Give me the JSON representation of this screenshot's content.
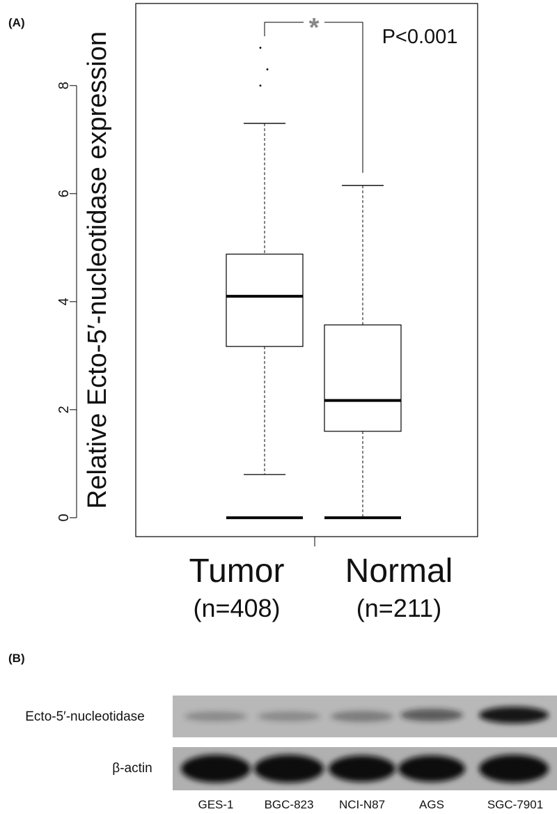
{
  "chart_data": {
    "type": "box",
    "panel_label": "(A)",
    "y_label": "Relative Ecto-5′-nucleotidase expression",
    "categories": [
      "Tumor",
      "Normal"
    ],
    "n_labels": [
      "(n=408)",
      "(n=211)"
    ],
    "boxes": [
      {
        "low": 0.8,
        "q1": 3.17,
        "median": 4.1,
        "q3": 4.88,
        "high": 7.3,
        "outliers": [
          8.7,
          8.3,
          8.0,
          0
        ]
      },
      {
        "low": 0,
        "q1": 1.6,
        "median": 2.17,
        "q3": 3.57,
        "high": 6.15,
        "outliers": [
          0
        ]
      }
    ],
    "ylim": [
      -0.35,
      9.52
    ],
    "yticks": [
      0,
      2,
      4,
      6,
      8
    ],
    "significance": "*",
    "annotation": "P<0.001",
    "color": "#000000"
  },
  "panel_b": {
    "label": "(B)",
    "rows": [
      "Ecto-5′-nucleotidase",
      "β-actin"
    ],
    "lanes": [
      "GES-1",
      "BGC-823",
      "NCI-N87",
      "AGS",
      "SGC-7901"
    ]
  }
}
